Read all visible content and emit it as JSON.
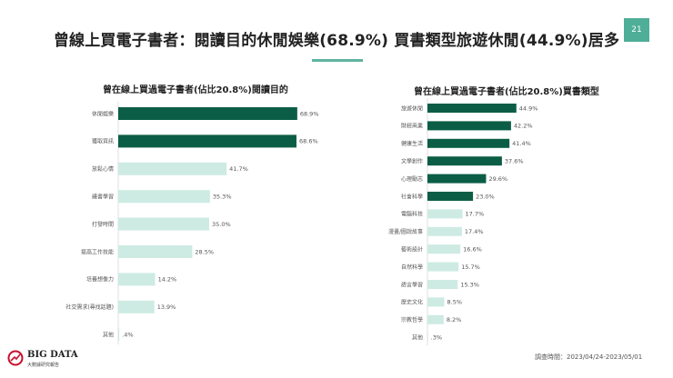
{
  "page": {
    "title": "曾線上買電子書者：閱讀目的休閒娛樂(68.9%)  買書類型旅遊休閒(44.9%)居多",
    "page_number": "21",
    "footnote": "調查時間：2023/04/24-2023/05/01",
    "logo_text": "BIG DATA",
    "logo_sub": "大數據研究報告",
    "colors": {
      "accent": "#0b5e45",
      "light": "#cdebe3",
      "badge": "#4fae98"
    }
  },
  "chart_data": [
    {
      "type": "bar",
      "orientation": "horizontal",
      "title": "曾在線上買過電子書者(佔比20.8%)閱讀目的",
      "categories": [
        "休閒娛樂",
        "獲取資訊",
        "放鬆心情",
        "議書學習",
        "打發時間",
        "提高工作技能",
        "培養想像力",
        "社交需求(尋找話題)",
        "其他"
      ],
      "values": [
        68.9,
        68.6,
        41.7,
        35.3,
        35.0,
        28.5,
        14.2,
        13.9,
        0.4
      ],
      "value_labels": [
        "68.9%",
        "68.6%",
        "41.7%",
        "35.3%",
        "35.0%",
        "28.5%",
        "14.2%",
        "13.9%",
        ".4%"
      ],
      "highlight_count": 2,
      "xlim": [
        0,
        70
      ]
    },
    {
      "type": "bar",
      "orientation": "horizontal",
      "title": "曾在線上買過電子書者(佔比20.8%)買書類型",
      "categories": [
        "旅遊休閒",
        "財經商業",
        "健康生活",
        "文學創作",
        "心理勵志",
        "社會科學",
        "電腦科技",
        "漫畫/圖說故事",
        "藝術設計",
        "自然科學",
        "語言學習",
        "歷史文化",
        "宗教哲學",
        "其他"
      ],
      "values": [
        44.9,
        42.2,
        41.4,
        37.6,
        29.6,
        23.0,
        17.7,
        17.4,
        16.6,
        15.7,
        15.3,
        8.5,
        8.2,
        0.3
      ],
      "value_labels": [
        "44.9%",
        "42.2%",
        "41.4%",
        "37.6%",
        "29.6%",
        "23.0%",
        "17.7%",
        "17.4%",
        "16.6%",
        "15.7%",
        "15.3%",
        "8.5%",
        "8.2%",
        ".3%"
      ],
      "highlight_count": 6,
      "xlim": [
        0,
        45
      ]
    }
  ]
}
